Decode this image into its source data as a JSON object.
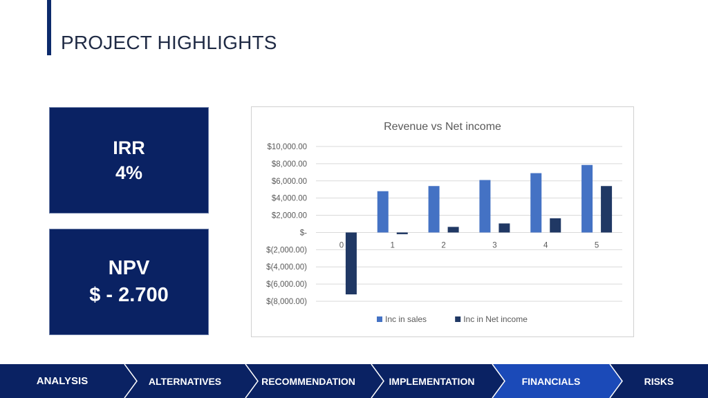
{
  "header": {
    "title": "PROJECT HIGHLIGHTS"
  },
  "kpis": {
    "irr": {
      "label": "IRR",
      "value": "4%"
    },
    "npv": {
      "label": "NPV",
      "value": "$ - 2.700"
    }
  },
  "chart_data": {
    "type": "bar",
    "title": "Revenue vs Net income",
    "xlabel": "",
    "ylabel": "",
    "categories": [
      "0",
      "1",
      "2",
      "3",
      "4",
      "5"
    ],
    "series": [
      {
        "name": "Inc in sales",
        "values": [
          0,
          4800,
          5400,
          6100,
          6900,
          7850
        ],
        "color": "#4472c4"
      },
      {
        "name": "Inc in Net income",
        "values": [
          -7200,
          -200,
          650,
          1050,
          1650,
          5400
        ],
        "color": "#203864"
      }
    ],
    "ylim": [
      -8000,
      10000
    ],
    "yticks": [
      10000,
      8000,
      6000,
      4000,
      2000,
      0,
      -2000,
      -4000,
      -6000,
      -8000
    ],
    "ytick_labels": [
      "$10,000.00",
      "$8,000.00",
      "$6,000.00",
      "$4,000.00",
      "$2,000.00",
      "$-",
      "$(2,000.00)",
      "$(4,000.00)",
      "$(6,000.00)",
      "$(8,000.00)"
    ],
    "grid": true,
    "legend": "bottom"
  },
  "nav": {
    "items": [
      {
        "label": "ANALYSIS",
        "active": false
      },
      {
        "label": "ALTERNATIVES",
        "active": false
      },
      {
        "label": "RECOMMENDATION",
        "active": false
      },
      {
        "label": "IMPLEMENTATION",
        "active": false
      },
      {
        "label": "FINANCIALS",
        "active": true
      },
      {
        "label": "RISKS",
        "active": false
      }
    ],
    "colors": {
      "base": "#0a2263",
      "active": "#1b4ab8",
      "separator": "#ffffff"
    }
  }
}
